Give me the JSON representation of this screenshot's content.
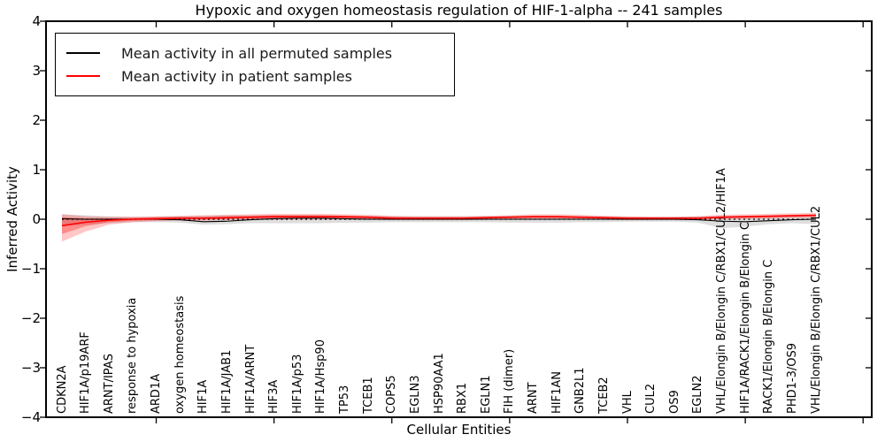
{
  "chart_data": {
    "type": "line",
    "title": "Hypoxic and oxygen homeostasis regulation of HIF-1-alpha -- 241 samples",
    "xlabel": "Cellular Entities",
    "ylabel": "Inferred Activity",
    "ylim": [
      -4,
      4
    ],
    "yticks": [
      4,
      3,
      2,
      1,
      0,
      -1,
      -2,
      -3,
      -4
    ],
    "xtick_positions": [
      5,
      10,
      15,
      20,
      25,
      30,
      35
    ],
    "grid": false,
    "legend_position": "upper left",
    "zero_reference_line": 0,
    "categories": [
      "CDKN2A",
      "HIF1A/p19ARF",
      "ARNT/IPAS",
      "response to hypoxia",
      "ARD1A",
      "oxygen homeostasis",
      "HIF1A",
      "HIF1A/JAB1",
      "HIF1A/ARNT",
      "HIF3A",
      "HIF1A/p53",
      "HIF1A/Hsp90",
      "TP53",
      "TCEB1",
      "COPS5",
      "EGLN3",
      "HSP90AA1",
      "RBX1",
      "EGLN1",
      "FIH (dimer)",
      "ARNT",
      "HIF1AN",
      "GNB2L1",
      "TCEB2",
      "VHL",
      "CUL2",
      "OS9",
      "EGLN2",
      "VHL/Elongin B/Elongin C/RBX1/CUL2/HIF1A",
      "HIF1A/RACK1/Elongin B/Elongin C",
      "RACK1/Elongin B/Elongin C",
      "PHD1-3/OS9",
      "VHL/Elongin B/Elongin C/RBX1/CUL2"
    ],
    "series": [
      {
        "name": "Mean activity in all permuted samples",
        "color": "#000000",
        "band_color": "rgba(0,0,0,0.13)",
        "values": [
          0.01,
          0.0,
          0.0,
          0.0,
          0.0,
          -0.01,
          -0.05,
          -0.04,
          -0.01,
          0.01,
          0.02,
          0.02,
          0.01,
          0.0,
          0.0,
          0.0,
          0.0,
          0.0,
          0.0,
          0.0,
          0.0,
          0.0,
          0.0,
          0.0,
          0.0,
          0.0,
          0.0,
          -0.01,
          -0.04,
          -0.05,
          -0.03,
          -0.01,
          0.0
        ],
        "band_upper": [
          0.1,
          0.08,
          0.06,
          0.05,
          0.05,
          0.06,
          0.07,
          0.08,
          0.08,
          0.08,
          0.08,
          0.08,
          0.07,
          0.07,
          0.06,
          0.06,
          0.06,
          0.06,
          0.06,
          0.07,
          0.07,
          0.07,
          0.06,
          0.06,
          0.05,
          0.05,
          0.05,
          0.06,
          0.07,
          0.07,
          0.07,
          0.07,
          0.08
        ],
        "band_lower": [
          -0.13,
          -0.11,
          -0.08,
          -0.06,
          -0.06,
          -0.07,
          -0.11,
          -0.1,
          -0.08,
          -0.08,
          -0.08,
          -0.08,
          -0.07,
          -0.07,
          -0.06,
          -0.06,
          -0.06,
          -0.06,
          -0.06,
          -0.07,
          -0.07,
          -0.07,
          -0.06,
          -0.06,
          -0.05,
          -0.05,
          -0.05,
          -0.07,
          -0.18,
          -0.15,
          -0.1,
          -0.08,
          -0.1
        ]
      },
      {
        "name": "Mean activity in patient samples",
        "color": "#ff0000",
        "band_color": "rgba(255,0,0,0.22)",
        "band_inner_color": "rgba(255,0,0,0.30)",
        "values": [
          -0.13,
          -0.06,
          -0.02,
          0.0,
          0.01,
          0.02,
          0.02,
          0.03,
          0.04,
          0.05,
          0.05,
          0.05,
          0.05,
          0.04,
          0.02,
          0.02,
          0.02,
          0.02,
          0.03,
          0.04,
          0.05,
          0.05,
          0.04,
          0.03,
          0.02,
          0.02,
          0.02,
          0.02,
          0.04,
          0.05,
          0.06,
          0.07,
          0.08
        ],
        "band_upper": [
          0.1,
          0.06,
          0.05,
          0.05,
          0.06,
          0.07,
          0.08,
          0.09,
          0.1,
          0.11,
          0.11,
          0.11,
          0.1,
          0.09,
          0.07,
          0.06,
          0.06,
          0.06,
          0.07,
          0.08,
          0.1,
          0.1,
          0.09,
          0.07,
          0.06,
          0.05,
          0.05,
          0.06,
          0.09,
          0.1,
          0.11,
          0.12,
          0.13
        ],
        "band_lower": [
          -0.45,
          -0.25,
          -0.11,
          -0.06,
          -0.04,
          -0.03,
          -0.03,
          -0.02,
          -0.01,
          -0.01,
          -0.01,
          -0.01,
          -0.01,
          -0.01,
          -0.02,
          -0.02,
          -0.02,
          -0.02,
          -0.01,
          0.0,
          0.0,
          0.0,
          -0.01,
          -0.01,
          -0.02,
          -0.02,
          -0.02,
          -0.02,
          -0.01,
          0.0,
          0.01,
          0.02,
          0.03
        ],
        "band_inner_upper": [
          0.04,
          0.02,
          0.02,
          0.03,
          0.04,
          0.05,
          0.05,
          0.06,
          0.07,
          0.08,
          0.08,
          0.08,
          0.07,
          0.06,
          0.05,
          0.04,
          0.04,
          0.04,
          0.05,
          0.06,
          0.07,
          0.07,
          0.06,
          0.05,
          0.04,
          0.04,
          0.04,
          0.04,
          0.06,
          0.07,
          0.08,
          0.09,
          0.1
        ],
        "band_inner_lower": [
          -0.3,
          -0.14,
          -0.06,
          -0.03,
          -0.02,
          -0.01,
          -0.01,
          0.0,
          0.01,
          0.02,
          0.02,
          0.02,
          0.02,
          0.01,
          0.0,
          0.0,
          0.0,
          0.0,
          0.01,
          0.02,
          0.03,
          0.03,
          0.02,
          0.01,
          0.0,
          0.0,
          0.0,
          0.0,
          0.02,
          0.03,
          0.04,
          0.05,
          0.06
        ]
      }
    ]
  }
}
